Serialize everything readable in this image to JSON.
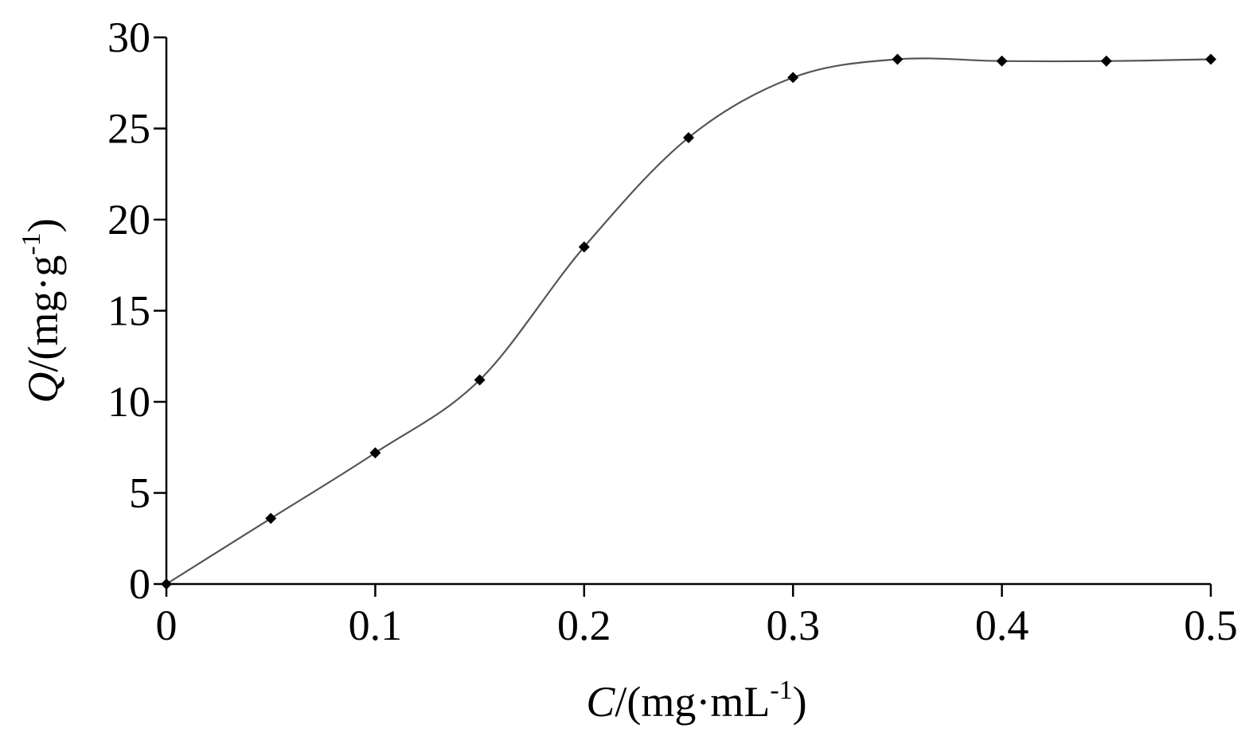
{
  "chart_data": {
    "type": "line",
    "title": "",
    "xlabel": {
      "var": "C",
      "unit": "/(mg·mL",
      "sup": "-1",
      "close": ")"
    },
    "ylabel": {
      "var": "Q",
      "unit": "/(mg·g",
      "sup": "-1",
      "close": ")"
    },
    "xlim": [
      0,
      0.5
    ],
    "ylim": [
      0,
      30
    ],
    "xticks": [
      0,
      0.1,
      0.2,
      0.3,
      0.4,
      0.5
    ],
    "xtick_labels": [
      "0",
      "0.1",
      "0.2",
      "0.3",
      "0.4",
      "0.5"
    ],
    "yticks": [
      0,
      5,
      10,
      15,
      20,
      25,
      30
    ],
    "ytick_labels": [
      "0",
      "5",
      "10",
      "15",
      "20",
      "25",
      "30"
    ],
    "grid": false,
    "legend": "none",
    "series": [
      {
        "x": [
          0,
          0.05,
          0.1,
          0.15,
          0.2,
          0.25,
          0.3,
          0.35,
          0.4,
          0.45,
          0.5
        ],
        "y": [
          0,
          3.6,
          7.2,
          11.2,
          18.5,
          24.5,
          27.8,
          28.8,
          28.7,
          28.7,
          28.8
        ],
        "line_color": "#555555",
        "marker_color": "#000000",
        "marker": "diamond",
        "smooth": true
      }
    ]
  }
}
